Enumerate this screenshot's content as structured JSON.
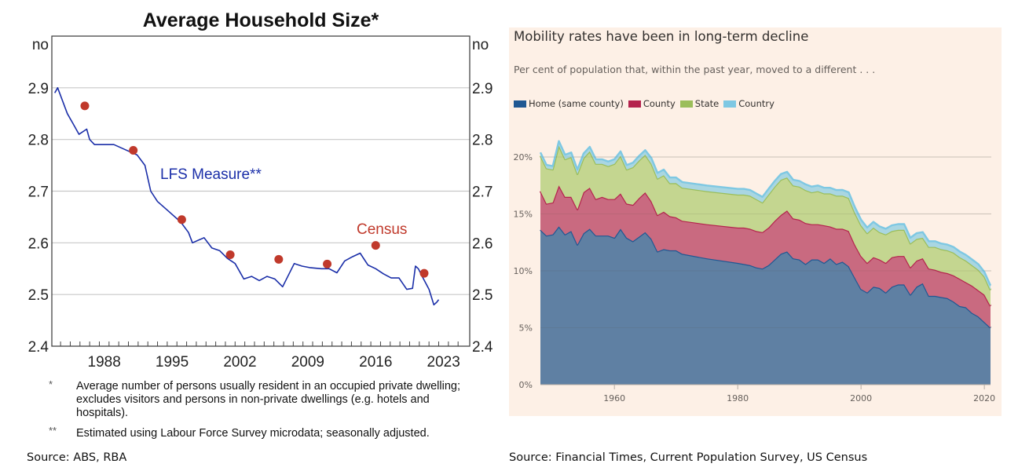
{
  "chart_data": [
    {
      "type": "line",
      "title": "Average Household Size*",
      "ylabel_left": "no",
      "ylabel_right": "no",
      "xlabel": "",
      "xlim": [
        1982.6,
        2025.7
      ],
      "ylim": [
        2.4,
        3.0
      ],
      "yticks": [
        "2.4",
        "2.5",
        "2.6",
        "2.7",
        "2.8",
        "2.9"
      ],
      "xticks": [
        "1988",
        "1995",
        "2002",
        "2009",
        "2016",
        "2023"
      ],
      "grid": true,
      "series": [
        {
          "name": "LFS Measure**",
          "color": "#1a2ea8",
          "x": [
            1982.9,
            1983.2,
            1984.2,
            1984.8,
            1985.4,
            1986.2,
            1986.5,
            1987.0,
            1987.8,
            1989.0,
            1990.2,
            1991.4,
            1992.2,
            1992.8,
            1993.5,
            1994.7,
            1995.9,
            1996.7,
            1997.1,
            1998.3,
            1999.1,
            1999.9,
            2000.7,
            2001.5,
            2002.4,
            2003.2,
            2004.0,
            2004.8,
            2005.6,
            2006.4,
            2007.6,
            2008.4,
            2009.2,
            2010.4,
            2011.2,
            2012.0,
            2012.8,
            2013.6,
            2014.4,
            2015.2,
            2016.0,
            2016.8,
            2017.6,
            2018.4,
            2019.2,
            2019.8,
            2020.1,
            2020.4,
            2020.8,
            2021.5,
            2022.0,
            2022.3,
            2022.5
          ],
          "y": [
            2.89,
            2.9,
            2.85,
            2.83,
            2.81,
            2.82,
            2.8,
            2.79,
            2.79,
            2.79,
            2.78,
            2.77,
            2.75,
            2.7,
            2.68,
            2.66,
            2.64,
            2.62,
            2.6,
            2.61,
            2.59,
            2.585,
            2.57,
            2.56,
            2.53,
            2.535,
            2.527,
            2.535,
            2.53,
            2.515,
            2.56,
            2.555,
            2.552,
            2.55,
            2.55,
            2.542,
            2.565,
            2.573,
            2.58,
            2.557,
            2.55,
            2.54,
            2.532,
            2.532,
            2.51,
            2.512,
            2.555,
            2.55,
            2.535,
            2.51,
            2.48,
            2.485,
            2.49
          ]
        },
        {
          "name": "Census",
          "type": "scatter",
          "color": "#c0392b",
          "x": [
            1986,
            1991,
            1996,
            2001,
            2006,
            2011,
            2016,
            2021
          ],
          "y": [
            2.865,
            2.779,
            2.645,
            2.577,
            2.568,
            2.559,
            2.595,
            2.541
          ]
        }
      ],
      "annotations": [
        "LFS Measure**",
        "Census"
      ]
    },
    {
      "type": "area",
      "stacked": true,
      "title": "Mobility rates have been in long-term decline",
      "subtitle": "Per cent of population that, within the past year, moved to a different . . .",
      "xlim": [
        1948,
        2021
      ],
      "ylim": [
        0,
        25
      ],
      "yticks": [
        "0%",
        "5%",
        "10%",
        "15%",
        "20%"
      ],
      "ytick_values": [
        0,
        5,
        10,
        15,
        20
      ],
      "xticks": [
        "1960",
        "1980",
        "2000",
        "2020"
      ],
      "xtick_values": [
        1960,
        1980,
        2000,
        2020
      ],
      "grid": true,
      "legend_position": "top-left",
      "x": [
        1948,
        1949,
        1950,
        1951,
        1952,
        1953,
        1954,
        1955,
        1956,
        1957,
        1958,
        1959,
        1960,
        1961,
        1962,
        1963,
        1964,
        1965,
        1966,
        1967,
        1968,
        1969,
        1970,
        1971,
        1975,
        1980,
        1981,
        1982,
        1983,
        1984,
        1985,
        1986,
        1987,
        1988,
        1989,
        1990,
        1991,
        1992,
        1993,
        1994,
        1995,
        1996,
        1997,
        1998,
        1999,
        2000,
        2001,
        2002,
        2003,
        2004,
        2005,
        2006,
        2007,
        2008,
        2009,
        2010,
        2011,
        2012,
        2013,
        2014,
        2015,
        2016,
        2017,
        2018,
        2019,
        2020,
        2021
      ],
      "series": [
        {
          "name": "Home (same county)",
          "color": "#1f5893",
          "fill": "#5f80a3",
          "values": [
            13.6,
            13.1,
            13.2,
            13.9,
            13.2,
            13.5,
            12.3,
            13.3,
            13.7,
            13.1,
            13.1,
            13.1,
            12.9,
            13.7,
            12.9,
            12.6,
            13.0,
            13.4,
            12.8,
            11.7,
            11.9,
            11.8,
            11.8,
            11.5,
            11.1,
            10.7,
            10.6,
            10.5,
            10.3,
            10.2,
            10.5,
            11.0,
            11.5,
            11.7,
            11.1,
            11.0,
            10.6,
            11.0,
            11.0,
            10.7,
            11.1,
            10.6,
            10.8,
            10.4,
            9.4,
            8.4,
            8.1,
            8.6,
            8.5,
            8.1,
            8.6,
            8.8,
            8.8,
            7.9,
            8.6,
            8.9,
            7.8,
            7.8,
            7.7,
            7.6,
            7.3,
            6.9,
            6.8,
            6.3,
            6.0,
            5.5,
            5.0
          ]
        },
        {
          "name": "County",
          "color": "#b4234d",
          "fill": "#c96a80",
          "values": [
            3.4,
            2.8,
            2.8,
            3.6,
            3.3,
            3.0,
            3.1,
            3.6,
            3.6,
            3.2,
            3.4,
            3.2,
            3.4,
            3.1,
            3.0,
            3.2,
            3.4,
            3.5,
            3.3,
            3.2,
            3.3,
            3.0,
            2.9,
            2.9,
            3.0,
            3.1,
            3.2,
            3.2,
            3.2,
            3.2,
            3.3,
            3.4,
            3.4,
            3.6,
            3.5,
            3.5,
            3.6,
            3.1,
            3.1,
            3.3,
            2.8,
            3.1,
            2.9,
            3.1,
            2.9,
            2.9,
            2.6,
            2.6,
            2.5,
            2.6,
            2.6,
            2.5,
            2.5,
            2.4,
            2.3,
            2.2,
            2.4,
            2.3,
            2.2,
            2.2,
            2.3,
            2.4,
            2.2,
            2.4,
            2.3,
            2.4,
            1.9
          ]
        },
        {
          "name": "State",
          "color": "#9bbe5a",
          "fill": "#c4d690",
          "values": [
            3.1,
            3.1,
            2.9,
            3.5,
            3.3,
            3.5,
            3.1,
            3.0,
            3.2,
            3.1,
            2.9,
            2.9,
            3.1,
            3.3,
            3.0,
            3.3,
            3.3,
            3.3,
            3.3,
            3.2,
            3.2,
            2.9,
            3.0,
            2.9,
            2.9,
            2.9,
            2.9,
            2.9,
            2.8,
            2.6,
            2.9,
            3.0,
            3.1,
            2.9,
            2.9,
            2.9,
            2.9,
            2.8,
            2.9,
            2.8,
            2.9,
            2.9,
            2.9,
            2.9,
            2.8,
            2.7,
            2.6,
            2.6,
            2.4,
            2.5,
            2.3,
            2.3,
            2.3,
            2.1,
            1.9,
            1.8,
            1.9,
            2.0,
            2.0,
            2.0,
            2.0,
            1.9,
            1.9,
            1.8,
            1.8,
            1.6,
            1.4
          ]
        },
        {
          "name": "Country",
          "color": "#7ec8e3",
          "fill": "#a9d6e2",
          "values": [
            0.3,
            0.3,
            0.3,
            0.4,
            0.4,
            0.4,
            0.4,
            0.4,
            0.4,
            0.4,
            0.4,
            0.4,
            0.4,
            0.4,
            0.4,
            0.4,
            0.4,
            0.4,
            0.5,
            0.5,
            0.5,
            0.5,
            0.5,
            0.5,
            0.5,
            0.5,
            0.5,
            0.5,
            0.5,
            0.5,
            0.5,
            0.5,
            0.5,
            0.5,
            0.5,
            0.5,
            0.5,
            0.5,
            0.5,
            0.5,
            0.5,
            0.5,
            0.5,
            0.5,
            0.5,
            0.5,
            0.5,
            0.5,
            0.5,
            0.5,
            0.5,
            0.5,
            0.5,
            0.5,
            0.5,
            0.5,
            0.5,
            0.5,
            0.5,
            0.5,
            0.5,
            0.5,
            0.5,
            0.5,
            0.5,
            0.4,
            0.4
          ]
        }
      ]
    }
  ],
  "left": {
    "title": "Average Household Size*",
    "unit_left": "no",
    "unit_right": "no",
    "lfs_label": "LFS Measure**",
    "census_label": "Census",
    "footnotes": [
      {
        "mark": "*",
        "text": "Average number of persons usually resident in an occupied private dwelling; excludes visitors and persons in non-private dwellings (e.g. hotels and hospitals)."
      },
      {
        "mark": "**",
        "text": "Estimated using Labour Force Survey microdata; seasonally adjusted."
      }
    ],
    "source": "Source:  ABS, RBA"
  },
  "right": {
    "title": "Mobility rates have been in long-term decline",
    "subtitle": "Per cent of population that, within the past year, moved to a different . . .",
    "legend": [
      {
        "label": "Home (same county)",
        "color": "#1f5893"
      },
      {
        "label": "County",
        "color": "#b4234d"
      },
      {
        "label": "State",
        "color": "#9bbe5a"
      },
      {
        "label": "Country",
        "color": "#7ec8e3"
      }
    ],
    "source": "Source:  Financial Times, Current Population Survey, US Census",
    "background": "#fdf0e6"
  }
}
